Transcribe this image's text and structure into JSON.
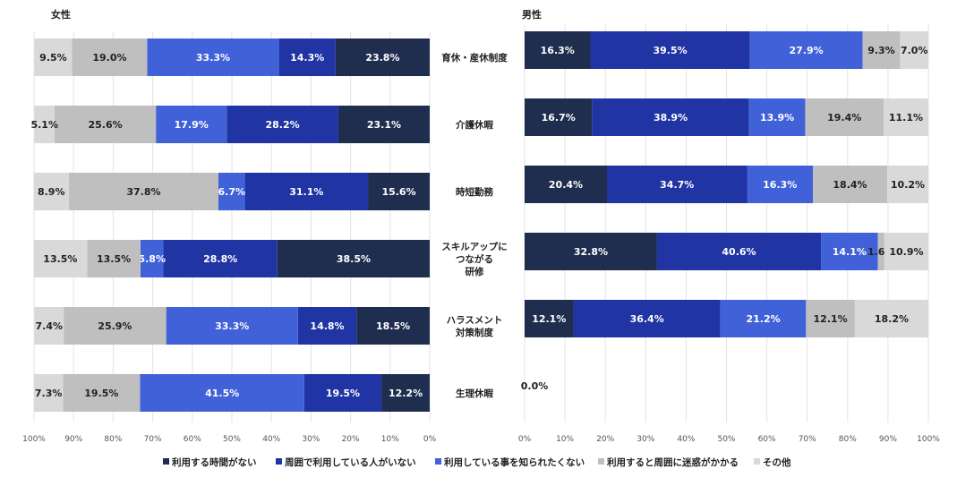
{
  "chart_data": [
    {
      "type": "bar",
      "orientation": "horizontal-stacked-100",
      "title": "女性",
      "x_direction": "reversed",
      "xlim": [
        0,
        100
      ],
      "xticks": [
        "0%",
        "10%",
        "20%",
        "30%",
        "40%",
        "50%",
        "60%",
        "70%",
        "80%",
        "90%",
        "100%"
      ],
      "grid": true,
      "categories": [
        "育休・産休制度",
        "介護休暇",
        "時短勤務",
        "スキルアップに\nつながる\n研修",
        "ハラスメント\n対策制度",
        "生理休暇"
      ],
      "series": [
        {
          "name": "利用する時間がない",
          "color": "#1f2d4e",
          "values": [
            23.8,
            23.1,
            15.6,
            38.5,
            18.5,
            12.2
          ]
        },
        {
          "name": "周囲で利用している人がいない",
          "color": "#2034a3",
          "values": [
            14.3,
            28.2,
            31.1,
            28.8,
            14.8,
            19.5
          ]
        },
        {
          "name": "利用している事を知られたくない",
          "color": "#4161d9",
          "values": [
            33.3,
            17.9,
            6.7,
            5.8,
            33.3,
            41.5
          ]
        },
        {
          "name": "利用すると周囲に迷惑がかかる",
          "color": "#bfbfbf",
          "values": [
            19.0,
            25.6,
            37.8,
            13.5,
            25.9,
            19.5
          ]
        },
        {
          "name": "その他",
          "color": "#d9d9d9",
          "values": [
            9.5,
            5.1,
            8.9,
            13.5,
            7.4,
            7.3
          ]
        }
      ]
    },
    {
      "type": "bar",
      "orientation": "horizontal-stacked-100",
      "title": "男性",
      "xlim": [
        0,
        100
      ],
      "xticks": [
        "0%",
        "10%",
        "20%",
        "30%",
        "40%",
        "50%",
        "60%",
        "70%",
        "80%",
        "90%",
        "100%"
      ],
      "grid": true,
      "categories": [
        "育休・産休制度",
        "介護休暇",
        "時短勤務",
        "スキルアップに\nつながる\n研修",
        "ハラスメント\n対策制度",
        "生理休暇"
      ],
      "series": [
        {
          "name": "利用する時間がない",
          "color": "#1f2d4e",
          "values": [
            16.3,
            16.7,
            20.4,
            32.8,
            12.1,
            0
          ]
        },
        {
          "name": "周囲で利用している人がいない",
          "color": "#2034a3",
          "values": [
            39.5,
            38.9,
            34.7,
            40.6,
            36.4,
            0
          ]
        },
        {
          "name": "利用している事を知られたくない",
          "color": "#4161d9",
          "values": [
            27.9,
            13.9,
            16.3,
            14.1,
            21.2,
            0
          ]
        },
        {
          "name": "利用すると周囲に迷惑がかかる",
          "color": "#bfbfbf",
          "values": [
            9.3,
            19.4,
            18.4,
            1.6,
            12.1,
            0
          ]
        },
        {
          "name": "その他",
          "color": "#d9d9d9",
          "values": [
            7.0,
            11.1,
            10.2,
            10.9,
            18.2,
            0
          ]
        }
      ],
      "annotations": [
        "0.0%"
      ]
    }
  ],
  "legend": {
    "position": "bottom"
  }
}
